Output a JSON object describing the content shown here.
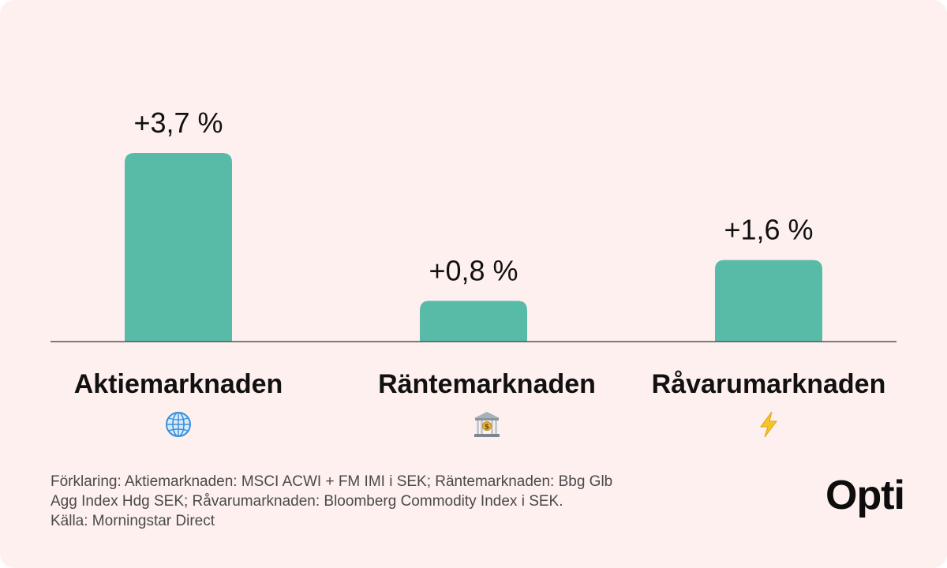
{
  "chart_data": {
    "type": "bar",
    "categories": [
      "Aktiemarknaden",
      "Räntemarknaden",
      "Råvarumarknaden"
    ],
    "values": [
      3.7,
      0.8,
      1.6
    ],
    "value_labels": [
      "+3,7 %",
      "+0,8 %",
      "+1,6 %"
    ],
    "ylim": [
      0,
      4.5
    ],
    "bar_color": "#58bba7",
    "grid": false,
    "legend": "none"
  },
  "icons": [
    "globe-icon",
    "bank-icon",
    "lightning-icon"
  ],
  "footnote": {
    "line1": "Förklaring: Aktiemarknaden: MSCI ACWI + FM IMI i SEK; Räntemarknaden: Bbg Glb",
    "line2": "Agg Index Hdg SEK; Råvarumarknaden: Bloomberg Commodity Index i SEK.",
    "line3": "Källa: Morningstar Direct"
  },
  "brand": {
    "logo": "Opti"
  },
  "colors": {
    "background": "#fdf0ee",
    "bar": "#58bba7",
    "axis": "#555555",
    "text": "#111111"
  }
}
